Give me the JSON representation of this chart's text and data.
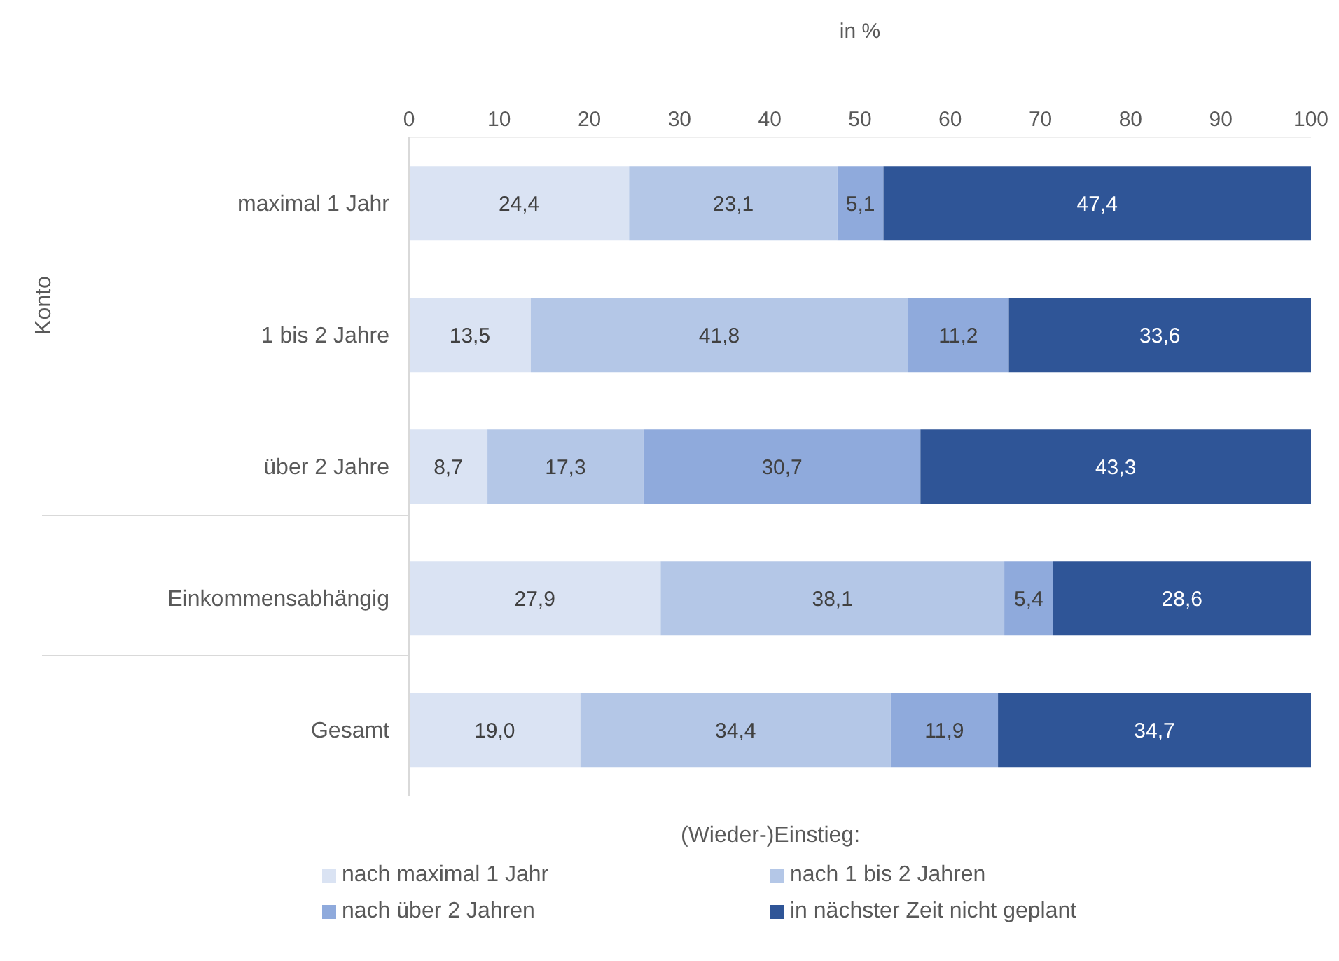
{
  "chart_data": {
    "type": "bar",
    "orientation": "horizontal",
    "stacked": true,
    "xlabel": "in %",
    "ylabel": "Konto",
    "legend_title": "(Wieder-)Einstieg:",
    "categories": [
      "maximal 1 Jahr",
      "1 bis 2 Jahre",
      "über 2 Jahre",
      "Einkommensabhängig",
      "Gesamt"
    ],
    "series": [
      {
        "name": "nach maximal 1 Jahr",
        "color": "#dae3f3",
        "values": [
          24.4,
          13.5,
          8.7,
          27.9,
          19.0
        ],
        "value_labels": [
          "24,4",
          "13,5",
          "8,7",
          "27,9",
          "19,0"
        ]
      },
      {
        "name": "nach 1 bis 2 Jahren",
        "color": "#b4c7e7",
        "values": [
          23.1,
          41.8,
          17.3,
          38.1,
          34.4
        ],
        "value_labels": [
          "23,1",
          "41,8",
          "17,3",
          "38,1",
          "34,4"
        ]
      },
      {
        "name": "nach über 2 Jahren",
        "color": "#8faadc",
        "values": [
          5.1,
          11.2,
          30.7,
          5.4,
          11.9
        ],
        "value_labels": [
          "5,1",
          "11,2",
          "30,7",
          "5,4",
          "11,9"
        ]
      },
      {
        "name": "in nächster Zeit nicht geplant",
        "color": "#2f5597",
        "values": [
          47.4,
          33.6,
          43.3,
          28.6,
          34.7
        ],
        "value_labels": [
          "47,4",
          "33,6",
          "43,3",
          "28,6",
          "34,7"
        ]
      }
    ],
    "xlim": [
      0,
      100
    ],
    "xticks": [
      0,
      10,
      20,
      30,
      40,
      50,
      60,
      70,
      80,
      90,
      100
    ],
    "grid": false,
    "legend": "bottom"
  }
}
